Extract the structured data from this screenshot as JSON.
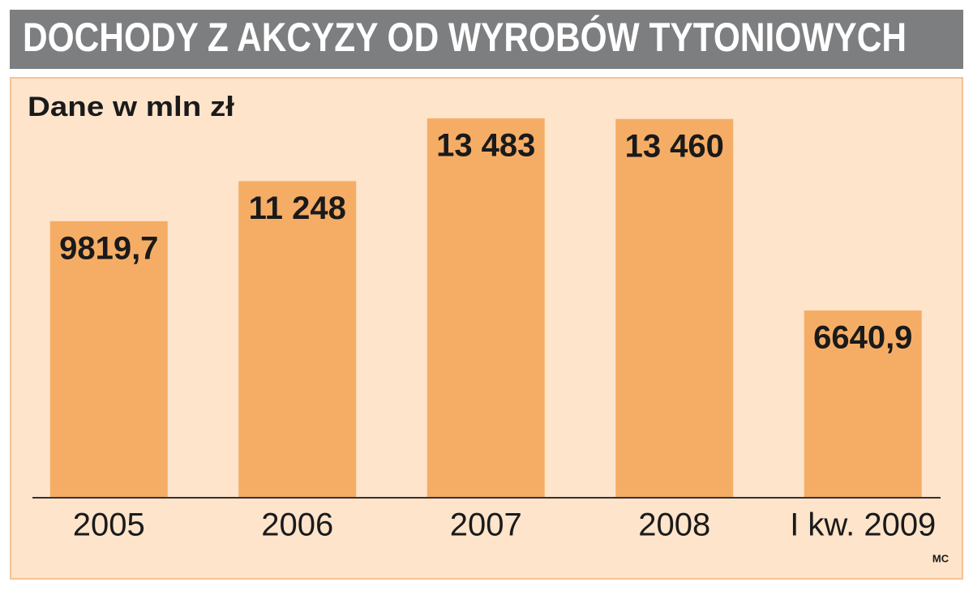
{
  "chart_data": {
    "type": "bar",
    "title": "DOCHODY Z AKCYZY OD WYROBÓW TYTONIOWYCH",
    "subtitle": "Dane w mln zł",
    "source": "MC",
    "categories": [
      "2005",
      "2006",
      "2007",
      "2008",
      "I kw. 2009"
    ],
    "values": [
      9819.7,
      11248,
      13483,
      13460,
      6640.9
    ],
    "value_labels": [
      "9819,7",
      "11 248",
      "13 483",
      "13 460",
      "6640,9"
    ],
    "color": "#f5ad66"
  }
}
